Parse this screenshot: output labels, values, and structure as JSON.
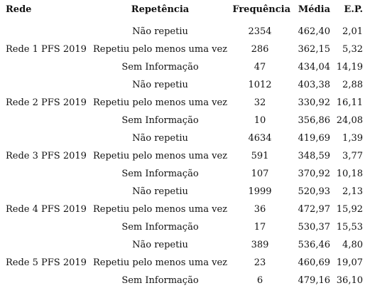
{
  "table": {
    "headers": {
      "rede": "Rede",
      "repetencia": "Repetência",
      "frequencia": "Frequência",
      "media": "Média",
      "ep": "E.P."
    },
    "rows": [
      {
        "rede": "",
        "repetencia": "Não repetiu",
        "frequencia": "2354",
        "media": "462,40",
        "ep": "2,01"
      },
      {
        "rede": "Rede 1 PFS 2019",
        "repetencia": "Repetiu pelo menos uma vez",
        "frequencia": "286",
        "media": "362,15",
        "ep": "5,32"
      },
      {
        "rede": "",
        "repetencia": "Sem Informação",
        "frequencia": "47",
        "media": "434,04",
        "ep": "14,19"
      },
      {
        "rede": "",
        "repetencia": "Não repetiu",
        "frequencia": "1012",
        "media": "403,38",
        "ep": "2,88"
      },
      {
        "rede": "Rede 2 PFS 2019",
        "repetencia": "Repetiu pelo menos uma vez",
        "frequencia": "32",
        "media": "330,92",
        "ep": "16,11"
      },
      {
        "rede": "",
        "repetencia": "Sem Informação",
        "frequencia": "10",
        "media": "356,86",
        "ep": "24,08"
      },
      {
        "rede": "",
        "repetencia": "Não repetiu",
        "frequencia": "4634",
        "media": "419,69",
        "ep": "1,39"
      },
      {
        "rede": "Rede 3 PFS 2019",
        "repetencia": "Repetiu pelo menos uma vez",
        "frequencia": "591",
        "media": "348,59",
        "ep": "3,77"
      },
      {
        "rede": "",
        "repetencia": "Sem Informação",
        "frequencia": "107",
        "media": "370,92",
        "ep": "10,18"
      },
      {
        "rede": "",
        "repetencia": "Não repetiu",
        "frequencia": "1999",
        "media": "520,93",
        "ep": "2,13"
      },
      {
        "rede": "Rede 4 PFS 2019",
        "repetencia": "Repetiu pelo menos uma vez",
        "frequencia": "36",
        "media": "472,97",
        "ep": "15,92"
      },
      {
        "rede": "",
        "repetencia": "Sem Informação",
        "frequencia": "17",
        "media": "530,37",
        "ep": "15,53"
      },
      {
        "rede": "",
        "repetencia": "Não repetiu",
        "frequencia": "389",
        "media": "536,46",
        "ep": "4,80"
      },
      {
        "rede": "Rede 5 PFS 2019",
        "repetencia": "Repetiu pelo menos uma vez",
        "frequencia": "23",
        "media": "460,69",
        "ep": "19,07"
      },
      {
        "rede": "",
        "repetencia": "Sem Informação",
        "frequencia": "6",
        "media": "479,16",
        "ep": "36,10"
      }
    ]
  }
}
